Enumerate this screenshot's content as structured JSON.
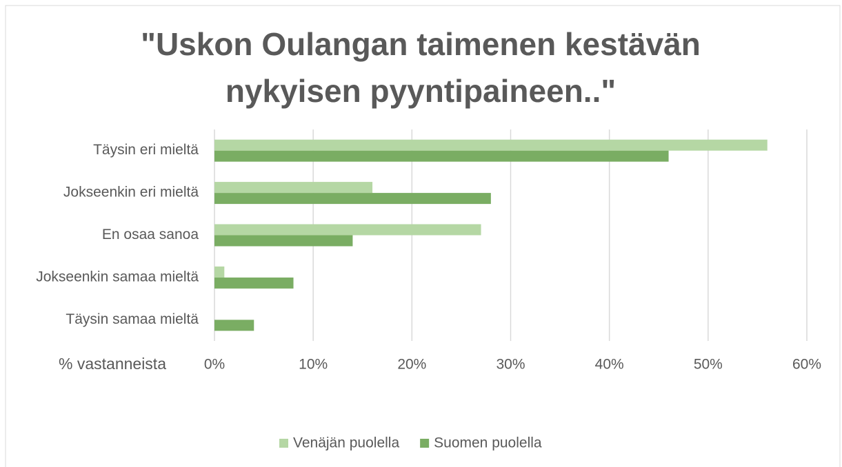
{
  "chart_data": {
    "type": "hbar",
    "title": "\"Uskon Oulangan taimenen kestävän nykyisen pyyntipaineen..\"",
    "categories": [
      "Täysin eri mieltä",
      "Jokseenkin eri mieltä",
      "En osaa sanoa",
      "Jokseenkin samaa mieltä",
      "Täysin samaa mieltä"
    ],
    "series": [
      {
        "name": "Venäjän puolella",
        "color": "#b5d7a4",
        "values": [
          56,
          16,
          27,
          1,
          0
        ]
      },
      {
        "name": "Suomen puolella",
        "color": "#7aad63",
        "values": [
          46,
          28,
          14,
          8,
          4
        ]
      }
    ],
    "x_label": "% vastanneista",
    "xlim": [
      0,
      60
    ],
    "xticks": [
      {
        "value": 0,
        "label": "0%"
      },
      {
        "value": 10,
        "label": "10%"
      },
      {
        "value": 20,
        "label": "20%"
      },
      {
        "value": 30,
        "label": "30%"
      },
      {
        "value": 40,
        "label": "40%"
      },
      {
        "value": 50,
        "label": "50%"
      },
      {
        "value": 60,
        "label": "60%"
      }
    ],
    "grid": true,
    "legend": "bottom"
  }
}
